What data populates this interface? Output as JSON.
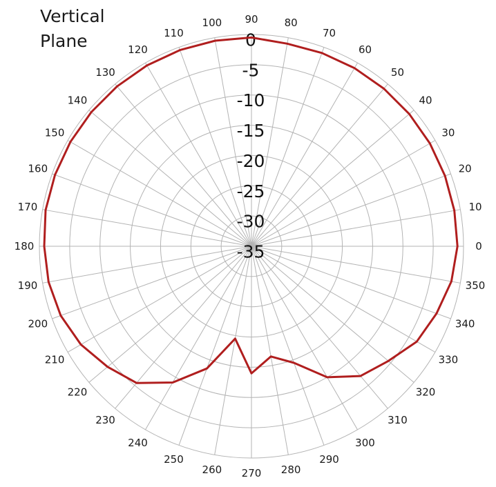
{
  "chart_data": {
    "type": "line",
    "title_lines": [
      "Vertical",
      "Plane"
    ],
    "coordinate_system": "polar",
    "series_color": "#b01e1e",
    "grid_color": "#b3b3b3",
    "radial_range": [
      -35,
      0
    ],
    "radial_ticks": [
      0,
      -5,
      -10,
      -15,
      -20,
      -25,
      -30,
      -35
    ],
    "radial_tick_labels": [
      "0",
      "-5",
      "-10",
      "-15",
      "-20",
      "-25",
      "-30",
      "-35"
    ],
    "angle_ticks": [
      0,
      10,
      20,
      30,
      40,
      50,
      60,
      70,
      80,
      90,
      100,
      110,
      120,
      130,
      140,
      150,
      160,
      170,
      180,
      190,
      200,
      210,
      220,
      230,
      240,
      250,
      260,
      270,
      280,
      290,
      300,
      310,
      320,
      330,
      340,
      350
    ],
    "angle_tick_labels": [
      "0",
      "10",
      "20",
      "30",
      "40",
      "50",
      "60",
      "70",
      "80",
      "90",
      "100",
      "110",
      "120",
      "130",
      "140",
      "150",
      "160",
      "170",
      "180",
      "190",
      "200",
      "210",
      "220",
      "230",
      "240",
      "250",
      "260",
      "270",
      "280",
      "290",
      "300",
      "310",
      "320",
      "330",
      "340",
      "350"
    ],
    "series": [
      {
        "angles": [
          0,
          10,
          20,
          30,
          40,
          50,
          60,
          70,
          80,
          90,
          100,
          110,
          120,
          130,
          140,
          150,
          160,
          170,
          180,
          190,
          200,
          210,
          220,
          230,
          240,
          250,
          260,
          270,
          280,
          290,
          300,
          310,
          320,
          330,
          340,
          350,
          360
        ],
        "values": [
          -1,
          -1,
          -1,
          -1,
          -1,
          -1,
          -1,
          -1,
          -1,
          -0.5,
          -0.5,
          -0.5,
          -0.5,
          -0.5,
          -0.5,
          -0.5,
          -0.5,
          -0.5,
          -0.8,
          -1,
          -1.5,
          -2.5,
          -4,
          -5.5,
          -9,
          -13.5,
          -19.5,
          -14,
          -16.5,
          -14.5,
          -10,
          -7,
          -5.5,
          -3.5,
          -2.5,
          -1.5,
          -1
        ]
      }
    ]
  }
}
